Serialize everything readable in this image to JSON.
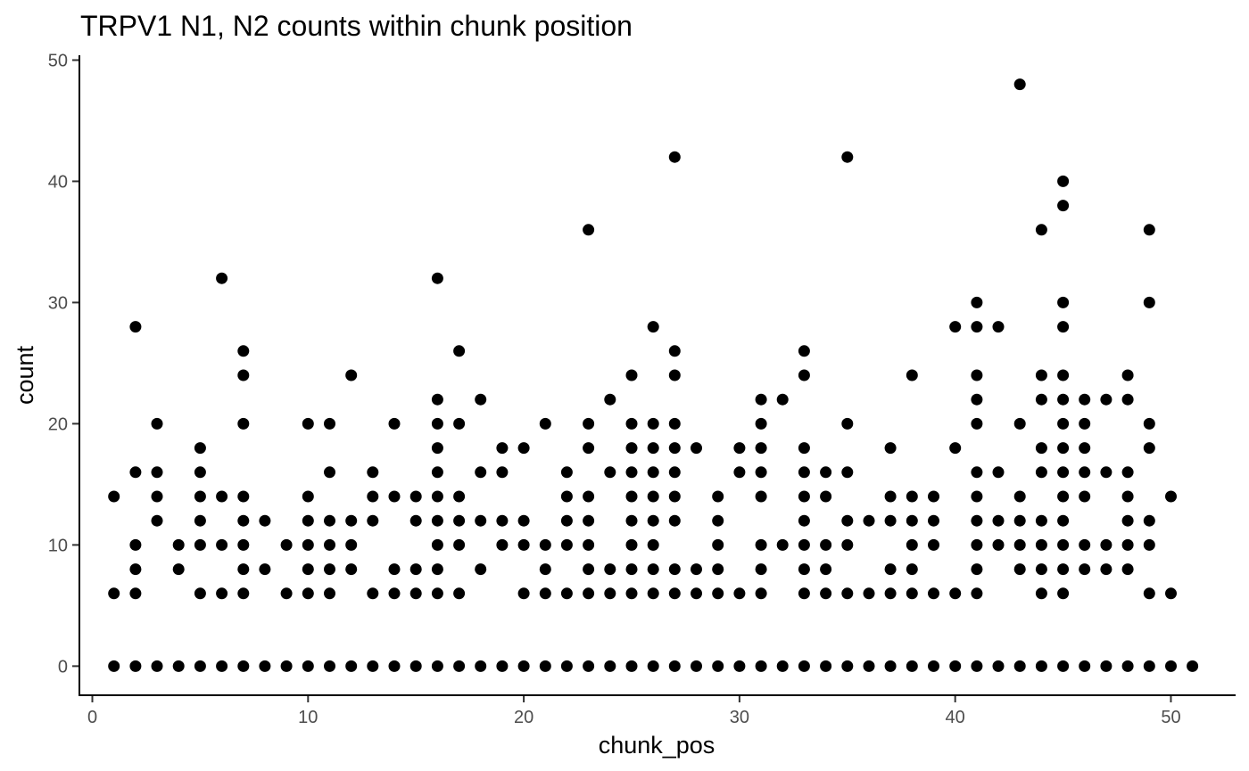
{
  "chart_data": {
    "type": "scatter",
    "title": "TRPV1 N1, N2 counts within chunk position",
    "xlabel": "chunk_pos",
    "ylabel": "count",
    "xlim": [
      -0.6,
      53
    ],
    "ylim": [
      -2.4,
      50.4
    ],
    "xticks": [
      0,
      10,
      20,
      30,
      40,
      50
    ],
    "yticks": [
      0,
      10,
      20,
      30,
      40,
      50
    ],
    "grid": false,
    "point_color": "#000000",
    "series": [
      {
        "points": [
          [
            1,
            0
          ],
          [
            1,
            6
          ],
          [
            1,
            14
          ],
          [
            2,
            0
          ],
          [
            2,
            6
          ],
          [
            2,
            8
          ],
          [
            2,
            10
          ],
          [
            2,
            16
          ],
          [
            2,
            28
          ],
          [
            3,
            0
          ],
          [
            3,
            12
          ],
          [
            3,
            14
          ],
          [
            3,
            16
          ],
          [
            3,
            20
          ],
          [
            4,
            0
          ],
          [
            4,
            8
          ],
          [
            4,
            10
          ],
          [
            5,
            0
          ],
          [
            5,
            6
          ],
          [
            5,
            10
          ],
          [
            5,
            12
          ],
          [
            5,
            14
          ],
          [
            5,
            16
          ],
          [
            5,
            18
          ],
          [
            6,
            0
          ],
          [
            6,
            6
          ],
          [
            6,
            10
          ],
          [
            6,
            14
          ],
          [
            6,
            32
          ],
          [
            7,
            0
          ],
          [
            7,
            6
          ],
          [
            7,
            8
          ],
          [
            7,
            10
          ],
          [
            7,
            12
          ],
          [
            7,
            14
          ],
          [
            7,
            20
          ],
          [
            7,
            24
          ],
          [
            7,
            26
          ],
          [
            8,
            0
          ],
          [
            8,
            8
          ],
          [
            8,
            12
          ],
          [
            9,
            0
          ],
          [
            9,
            6
          ],
          [
            9,
            10
          ],
          [
            10,
            0
          ],
          [
            10,
            6
          ],
          [
            10,
            8
          ],
          [
            10,
            10
          ],
          [
            10,
            12
          ],
          [
            10,
            14
          ],
          [
            10,
            20
          ],
          [
            11,
            0
          ],
          [
            11,
            6
          ],
          [
            11,
            8
          ],
          [
            11,
            10
          ],
          [
            11,
            12
          ],
          [
            11,
            16
          ],
          [
            11,
            20
          ],
          [
            12,
            0
          ],
          [
            12,
            8
          ],
          [
            12,
            10
          ],
          [
            12,
            12
          ],
          [
            12,
            24
          ],
          [
            13,
            0
          ],
          [
            13,
            6
          ],
          [
            13,
            12
          ],
          [
            13,
            14
          ],
          [
            13,
            16
          ],
          [
            14,
            0
          ],
          [
            14,
            6
          ],
          [
            14,
            8
          ],
          [
            14,
            14
          ],
          [
            14,
            20
          ],
          [
            15,
            0
          ],
          [
            15,
            6
          ],
          [
            15,
            8
          ],
          [
            15,
            12
          ],
          [
            15,
            14
          ],
          [
            16,
            0
          ],
          [
            16,
            6
          ],
          [
            16,
            8
          ],
          [
            16,
            10
          ],
          [
            16,
            12
          ],
          [
            16,
            14
          ],
          [
            16,
            16
          ],
          [
            16,
            18
          ],
          [
            16,
            20
          ],
          [
            16,
            22
          ],
          [
            16,
            32
          ],
          [
            17,
            0
          ],
          [
            17,
            6
          ],
          [
            17,
            10
          ],
          [
            17,
            12
          ],
          [
            17,
            14
          ],
          [
            17,
            20
          ],
          [
            17,
            26
          ],
          [
            18,
            0
          ],
          [
            18,
            8
          ],
          [
            18,
            12
          ],
          [
            18,
            16
          ],
          [
            18,
            22
          ],
          [
            19,
            0
          ],
          [
            19,
            10
          ],
          [
            19,
            12
          ],
          [
            19,
            16
          ],
          [
            19,
            18
          ],
          [
            20,
            0
          ],
          [
            20,
            6
          ],
          [
            20,
            10
          ],
          [
            20,
            12
          ],
          [
            20,
            18
          ],
          [
            21,
            0
          ],
          [
            21,
            6
          ],
          [
            21,
            8
          ],
          [
            21,
            10
          ],
          [
            21,
            20
          ],
          [
            22,
            0
          ],
          [
            22,
            6
          ],
          [
            22,
            10
          ],
          [
            22,
            12
          ],
          [
            22,
            14
          ],
          [
            22,
            16
          ],
          [
            23,
            0
          ],
          [
            23,
            6
          ],
          [
            23,
            8
          ],
          [
            23,
            10
          ],
          [
            23,
            12
          ],
          [
            23,
            14
          ],
          [
            23,
            18
          ],
          [
            23,
            20
          ],
          [
            23,
            36
          ],
          [
            24,
            0
          ],
          [
            24,
            6
          ],
          [
            24,
            8
          ],
          [
            24,
            16
          ],
          [
            24,
            22
          ],
          [
            25,
            0
          ],
          [
            25,
            6
          ],
          [
            25,
            8
          ],
          [
            25,
            10
          ],
          [
            25,
            12
          ],
          [
            25,
            14
          ],
          [
            25,
            16
          ],
          [
            25,
            18
          ],
          [
            25,
            20
          ],
          [
            25,
            24
          ],
          [
            26,
            0
          ],
          [
            26,
            6
          ],
          [
            26,
            8
          ],
          [
            26,
            10
          ],
          [
            26,
            12
          ],
          [
            26,
            14
          ],
          [
            26,
            16
          ],
          [
            26,
            18
          ],
          [
            26,
            20
          ],
          [
            26,
            28
          ],
          [
            27,
            0
          ],
          [
            27,
            6
          ],
          [
            27,
            8
          ],
          [
            27,
            12
          ],
          [
            27,
            14
          ],
          [
            27,
            16
          ],
          [
            27,
            18
          ],
          [
            27,
            20
          ],
          [
            27,
            24
          ],
          [
            27,
            26
          ],
          [
            27,
            42
          ],
          [
            28,
            0
          ],
          [
            28,
            6
          ],
          [
            28,
            8
          ],
          [
            28,
            18
          ],
          [
            29,
            0
          ],
          [
            29,
            6
          ],
          [
            29,
            8
          ],
          [
            29,
            10
          ],
          [
            29,
            12
          ],
          [
            29,
            14
          ],
          [
            30,
            0
          ],
          [
            30,
            6
          ],
          [
            30,
            16
          ],
          [
            30,
            18
          ],
          [
            31,
            0
          ],
          [
            31,
            6
          ],
          [
            31,
            8
          ],
          [
            31,
            10
          ],
          [
            31,
            14
          ],
          [
            31,
            16
          ],
          [
            31,
            18
          ],
          [
            31,
            20
          ],
          [
            31,
            22
          ],
          [
            32,
            0
          ],
          [
            32,
            10
          ],
          [
            32,
            22
          ],
          [
            33,
            0
          ],
          [
            33,
            6
          ],
          [
            33,
            8
          ],
          [
            33,
            10
          ],
          [
            33,
            12
          ],
          [
            33,
            14
          ],
          [
            33,
            16
          ],
          [
            33,
            18
          ],
          [
            33,
            24
          ],
          [
            33,
            26
          ],
          [
            34,
            0
          ],
          [
            34,
            6
          ],
          [
            34,
            8
          ],
          [
            34,
            10
          ],
          [
            34,
            14
          ],
          [
            34,
            16
          ],
          [
            35,
            0
          ],
          [
            35,
            6
          ],
          [
            35,
            10
          ],
          [
            35,
            12
          ],
          [
            35,
            16
          ],
          [
            35,
            20
          ],
          [
            35,
            42
          ],
          [
            36,
            0
          ],
          [
            36,
            6
          ],
          [
            36,
            12
          ],
          [
            37,
            0
          ],
          [
            37,
            6
          ],
          [
            37,
            8
          ],
          [
            37,
            12
          ],
          [
            37,
            14
          ],
          [
            37,
            18
          ],
          [
            38,
            0
          ],
          [
            38,
            6
          ],
          [
            38,
            8
          ],
          [
            38,
            10
          ],
          [
            38,
            12
          ],
          [
            38,
            14
          ],
          [
            38,
            24
          ],
          [
            39,
            0
          ],
          [
            39,
            6
          ],
          [
            39,
            10
          ],
          [
            39,
            12
          ],
          [
            39,
            14
          ],
          [
            40,
            0
          ],
          [
            40,
            6
          ],
          [
            40,
            18
          ],
          [
            40,
            28
          ],
          [
            41,
            0
          ],
          [
            41,
            6
          ],
          [
            41,
            8
          ],
          [
            41,
            10
          ],
          [
            41,
            12
          ],
          [
            41,
            14
          ],
          [
            41,
            16
          ],
          [
            41,
            20
          ],
          [
            41,
            22
          ],
          [
            41,
            24
          ],
          [
            41,
            28
          ],
          [
            41,
            30
          ],
          [
            42,
            0
          ],
          [
            42,
            10
          ],
          [
            42,
            12
          ],
          [
            42,
            16
          ],
          [
            42,
            28
          ],
          [
            43,
            0
          ],
          [
            43,
            8
          ],
          [
            43,
            10
          ],
          [
            43,
            12
          ],
          [
            43,
            14
          ],
          [
            43,
            20
          ],
          [
            43,
            48
          ],
          [
            44,
            0
          ],
          [
            44,
            6
          ],
          [
            44,
            8
          ],
          [
            44,
            10
          ],
          [
            44,
            12
          ],
          [
            44,
            16
          ],
          [
            44,
            18
          ],
          [
            44,
            22
          ],
          [
            44,
            24
          ],
          [
            44,
            36
          ],
          [
            45,
            0
          ],
          [
            45,
            6
          ],
          [
            45,
            8
          ],
          [
            45,
            10
          ],
          [
            45,
            12
          ],
          [
            45,
            14
          ],
          [
            45,
            16
          ],
          [
            45,
            18
          ],
          [
            45,
            20
          ],
          [
            45,
            22
          ],
          [
            45,
            24
          ],
          [
            45,
            28
          ],
          [
            45,
            30
          ],
          [
            45,
            38
          ],
          [
            45,
            40
          ],
          [
            46,
            0
          ],
          [
            46,
            8
          ],
          [
            46,
            10
          ],
          [
            46,
            14
          ],
          [
            46,
            16
          ],
          [
            46,
            18
          ],
          [
            46,
            20
          ],
          [
            46,
            22
          ],
          [
            47,
            0
          ],
          [
            47,
            8
          ],
          [
            47,
            10
          ],
          [
            47,
            16
          ],
          [
            47,
            22
          ],
          [
            48,
            0
          ],
          [
            48,
            8
          ],
          [
            48,
            10
          ],
          [
            48,
            12
          ],
          [
            48,
            14
          ],
          [
            48,
            16
          ],
          [
            48,
            22
          ],
          [
            48,
            24
          ],
          [
            49,
            0
          ],
          [
            49,
            6
          ],
          [
            49,
            10
          ],
          [
            49,
            12
          ],
          [
            49,
            18
          ],
          [
            49,
            20
          ],
          [
            49,
            30
          ],
          [
            49,
            36
          ],
          [
            50,
            0
          ],
          [
            50,
            6
          ],
          [
            50,
            14
          ],
          [
            51,
            0
          ]
        ]
      }
    ]
  }
}
